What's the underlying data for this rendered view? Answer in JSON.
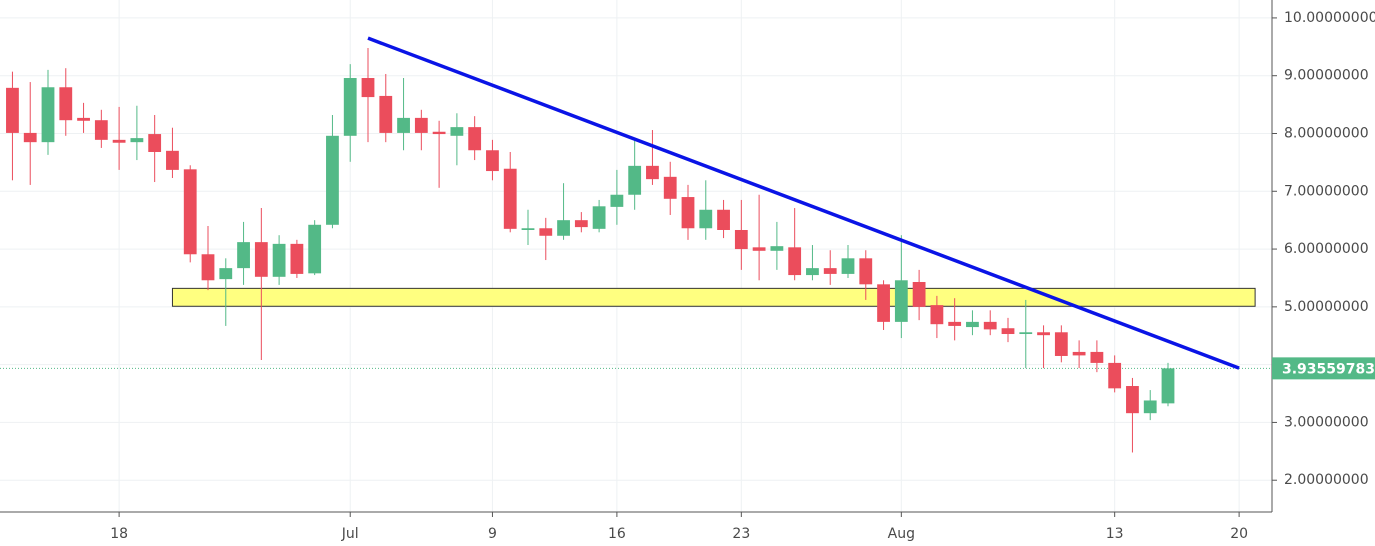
{
  "chart_data": {
    "type": "candlestick",
    "x": [
      12,
      13,
      14,
      15,
      16,
      17,
      18,
      19,
      20,
      21,
      22,
      23,
      24,
      25,
      26,
      27,
      28,
      29,
      30,
      31,
      32,
      33,
      34,
      35,
      36,
      37,
      38,
      39,
      40,
      41,
      42,
      43,
      44,
      45,
      46,
      47,
      48,
      49,
      50,
      51,
      52,
      53,
      54,
      55,
      56,
      57,
      58,
      59,
      60,
      61,
      62,
      63,
      64,
      65,
      66,
      67,
      68,
      69,
      70,
      71,
      72,
      73,
      74,
      75,
      76,
      77
    ],
    "open": [
      8.79,
      8.01,
      7.85,
      8.8,
      8.27,
      8.23,
      7.89,
      7.85,
      7.99,
      7.7,
      7.38,
      5.91,
      5.48,
      5.67,
      6.12,
      5.52,
      6.09,
      5.58,
      6.42,
      7.96,
      8.96,
      8.65,
      8.01,
      8.27,
      8.03,
      7.96,
      8.11,
      7.71,
      7.39,
      6.33,
      6.36,
      6.23,
      6.5,
      6.35,
      6.73,
      6.94,
      7.44,
      7.25,
      6.9,
      6.36,
      6.68,
      6.33,
      6.03,
      5.97,
      6.03,
      5.55,
      5.67,
      5.57,
      5.84,
      5.39,
      4.74,
      5.43,
      5.03,
      4.74,
      4.65,
      4.74,
      4.63,
      4.53,
      4.56,
      4.56,
      4.22,
      4.22,
      4.03,
      3.63,
      3.16,
      3.33
    ],
    "high": [
      9.07,
      8.89,
      9.1,
      9.13,
      8.53,
      8.41,
      8.46,
      8.48,
      8.32,
      8.1,
      7.45,
      6.4,
      5.84,
      6.47,
      6.71,
      6.24,
      6.16,
      6.5,
      8.32,
      9.2,
      9.48,
      9.03,
      8.96,
      8.41,
      8.22,
      8.35,
      8.3,
      7.89,
      7.68,
      6.68,
      6.54,
      7.14,
      6.64,
      6.85,
      7.37,
      7.89,
      8.06,
      7.51,
      7.11,
      7.19,
      6.85,
      6.85,
      6.94,
      6.47,
      6.71,
      6.07,
      5.98,
      6.07,
      5.98,
      5.46,
      6.24,
      5.64,
      5.19,
      5.15,
      4.94,
      4.94,
      4.81,
      5.12,
      4.68,
      4.68,
      4.42,
      4.42,
      4.16,
      3.77,
      3.56,
      4.03
    ],
    "low": [
      7.19,
      7.11,
      7.63,
      7.96,
      8.01,
      7.75,
      7.37,
      7.54,
      7.16,
      7.23,
      5.77,
      5.29,
      4.67,
      5.38,
      4.08,
      5.38,
      5.5,
      5.55,
      6.36,
      7.51,
      7.85,
      7.85,
      7.71,
      7.71,
      7.06,
      7.45,
      7.54,
      7.19,
      6.29,
      6.07,
      5.81,
      6.16,
      6.29,
      6.29,
      6.42,
      6.68,
      7.11,
      6.59,
      6.16,
      6.16,
      6.19,
      5.64,
      5.46,
      5.64,
      5.46,
      5.46,
      5.38,
      5.5,
      5.12,
      4.6,
      4.46,
      4.77,
      4.46,
      4.42,
      4.51,
      4.51,
      4.39,
      3.94,
      3.94,
      4.04,
      3.94,
      3.87,
      3.52,
      2.48,
      3.04,
      3.28
    ],
    "close": [
      8.01,
      7.85,
      8.8,
      8.23,
      8.22,
      7.89,
      7.84,
      7.92,
      7.68,
      7.37,
      5.91,
      5.46,
      5.67,
      6.12,
      5.52,
      6.09,
      5.57,
      6.42,
      7.96,
      8.96,
      8.63,
      8.01,
      8.27,
      8.01,
      7.99,
      8.11,
      7.71,
      7.35,
      6.35,
      6.36,
      6.23,
      6.5,
      6.38,
      6.74,
      6.94,
      7.44,
      7.21,
      6.87,
      6.36,
      6.68,
      6.33,
      6.0,
      5.97,
      6.05,
      5.55,
      5.67,
      5.57,
      5.84,
      5.39,
      4.74,
      5.46,
      5.0,
      4.7,
      4.67,
      4.74,
      4.61,
      4.53,
      4.56,
      4.51,
      4.15,
      4.16,
      4.03,
      3.59,
      3.16,
      3.38,
      3.93559783
    ],
    "up_color": "#53b987",
    "down_color": "#eb4d5c",
    "last_price": 3.93559783,
    "xlim": [
      11.3,
      82.85
    ],
    "ylim": [
      1.45,
      10.31
    ],
    "xticks": [
      {
        "value": 18,
        "label": "18"
      },
      {
        "value": 31,
        "label": "Jul"
      },
      {
        "value": 39,
        "label": "9"
      },
      {
        "value": 46,
        "label": "16"
      },
      {
        "value": 53,
        "label": "23"
      },
      {
        "value": 62,
        "label": "Aug"
      },
      {
        "value": 74,
        "label": "13"
      },
      {
        "value": 81,
        "label": "20"
      }
    ],
    "yticks": [
      {
        "value": 2,
        "label": "2.00000000"
      },
      {
        "value": 3,
        "label": "3.00000000"
      },
      {
        "value": 4,
        "label": "4.00000000"
      },
      {
        "value": 5,
        "label": "5.00000000"
      },
      {
        "value": 6,
        "label": "6.00000000"
      },
      {
        "value": 7,
        "label": "7.00000000"
      },
      {
        "value": 8,
        "label": "8.00000000"
      },
      {
        "value": 9,
        "label": "9.00000000"
      },
      {
        "value": 10,
        "label": "10.00000000"
      }
    ],
    "grid": true,
    "trendline": {
      "x": [
        32,
        81
      ],
      "y": [
        9.65,
        3.94
      ],
      "color": "#0a14e6"
    },
    "zone": {
      "x": [
        21,
        81.9
      ],
      "y": [
        5.01,
        5.32
      ],
      "color": "#ffff80"
    }
  }
}
